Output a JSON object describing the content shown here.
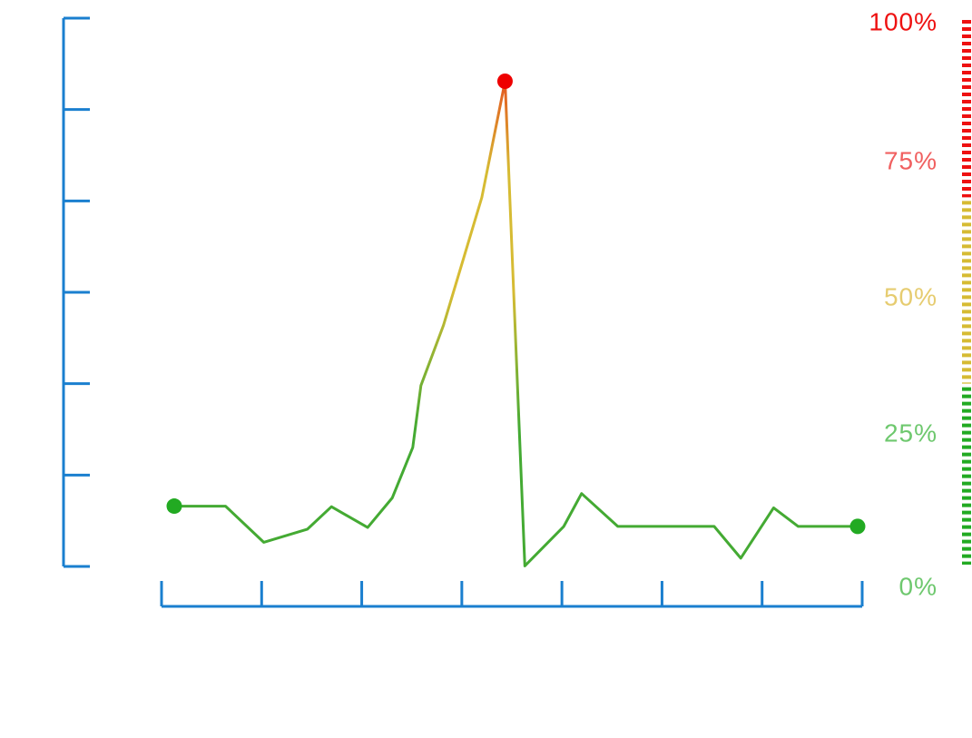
{
  "chart_data": {
    "type": "line",
    "series": [
      {
        "values": [
          {
            "x": 0.0,
            "y": 11.0
          },
          {
            "x": 0.075,
            "y": 11.0
          },
          {
            "x": 0.131,
            "y": 4.4
          },
          {
            "x": 0.195,
            "y": 6.8
          },
          {
            "x": 0.23,
            "y": 10.9
          },
          {
            "x": 0.283,
            "y": 7.1
          },
          {
            "x": 0.319,
            "y": 12.5
          },
          {
            "x": 0.349,
            "y": 21.7
          },
          {
            "x": 0.361,
            "y": 33.0
          },
          {
            "x": 0.394,
            "y": 44.0
          },
          {
            "x": 0.45,
            "y": 67.3
          },
          {
            "x": 0.484,
            "y": 88.5
          },
          {
            "x": 0.513,
            "y": 0.1
          },
          {
            "x": 0.57,
            "y": 7.3
          },
          {
            "x": 0.596,
            "y": 13.3
          },
          {
            "x": 0.649,
            "y": 7.3
          },
          {
            "x": 0.79,
            "y": 7.3
          },
          {
            "x": 0.829,
            "y": 1.5
          },
          {
            "x": 0.877,
            "y": 10.7
          },
          {
            "x": 0.913,
            "y": 7.3
          },
          {
            "x": 1.0,
            "y": 7.3
          }
        ]
      }
    ],
    "highlight_points": [
      {
        "x": 0.0,
        "y": 11.0,
        "color": "#22aa22"
      },
      {
        "x": 0.484,
        "y": 88.5,
        "color": "#ee0000"
      },
      {
        "x": 1.0,
        "y": 7.3,
        "color": "#22aa22"
      }
    ],
    "ylim": [
      0,
      100
    ],
    "right_axis": {
      "ticks": [
        {
          "label": "100%",
          "color": "#ee1111"
        },
        {
          "label": "75%",
          "color": "#f06060"
        },
        {
          "label": "50%",
          "color": "#e6cc70"
        },
        {
          "label": "25%",
          "color": "#6ec86e"
        },
        {
          "label": "0%",
          "color": "#6ec86e"
        }
      ],
      "bands": [
        {
          "from": 67,
          "to": 100,
          "color": "#ee1111"
        },
        {
          "from": 33,
          "to": 67,
          "color": "#d6bb33"
        },
        {
          "from": 0,
          "to": 33,
          "color": "#22aa22"
        }
      ]
    },
    "left_axis": {
      "tick_count": 7,
      "color": "#1a7fcf"
    },
    "bottom_axis": {
      "tick_count": 8,
      "color": "#1a7fcf"
    },
    "line_colors": {
      "low": "#44aa33",
      "mid": "#d6bb33",
      "high": "#ee1111"
    },
    "grid": false,
    "legend": "none"
  }
}
